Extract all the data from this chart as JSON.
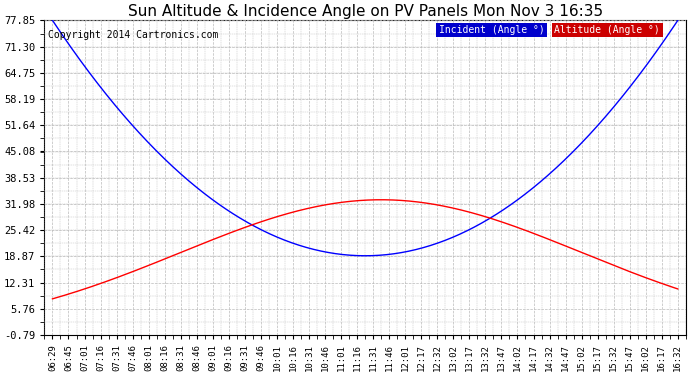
{
  "title": "Sun Altitude & Incidence Angle on PV Panels Mon Nov 3 16:35",
  "copyright": "Copyright 2014 Cartronics.com",
  "x_labels": [
    "06:29",
    "06:45",
    "07:01",
    "07:16",
    "07:31",
    "07:46",
    "08:01",
    "08:16",
    "08:31",
    "08:46",
    "09:01",
    "09:16",
    "09:31",
    "09:46",
    "10:01",
    "10:16",
    "10:31",
    "10:46",
    "11:01",
    "11:16",
    "11:31",
    "11:46",
    "12:01",
    "12:17",
    "12:32",
    "13:02",
    "13:17",
    "13:32",
    "13:47",
    "14:02",
    "14:17",
    "14:32",
    "14:47",
    "15:02",
    "15:17",
    "15:32",
    "15:47",
    "16:02",
    "16:17",
    "16:32"
  ],
  "y_ticks": [
    -0.79,
    5.76,
    12.31,
    18.87,
    25.42,
    31.98,
    38.53,
    45.08,
    51.64,
    58.19,
    64.75,
    71.3,
    77.85
  ],
  "ylim_min": -0.79,
  "ylim_max": 77.85,
  "blue_line_color": "#0000FF",
  "red_line_color": "#FF0000",
  "background_color": "#FFFFFF",
  "grid_color": "#BBBBBB",
  "legend_blue_label": "Incident (Angle °)",
  "legend_red_label": "Altitude (Angle °)",
  "legend_blue_bg": "#0000CC",
  "legend_red_bg": "#CC0000",
  "title_fontsize": 11,
  "copyright_fontsize": 7,
  "tick_fontsize": 6.5,
  "ytick_fontsize": 7.5
}
